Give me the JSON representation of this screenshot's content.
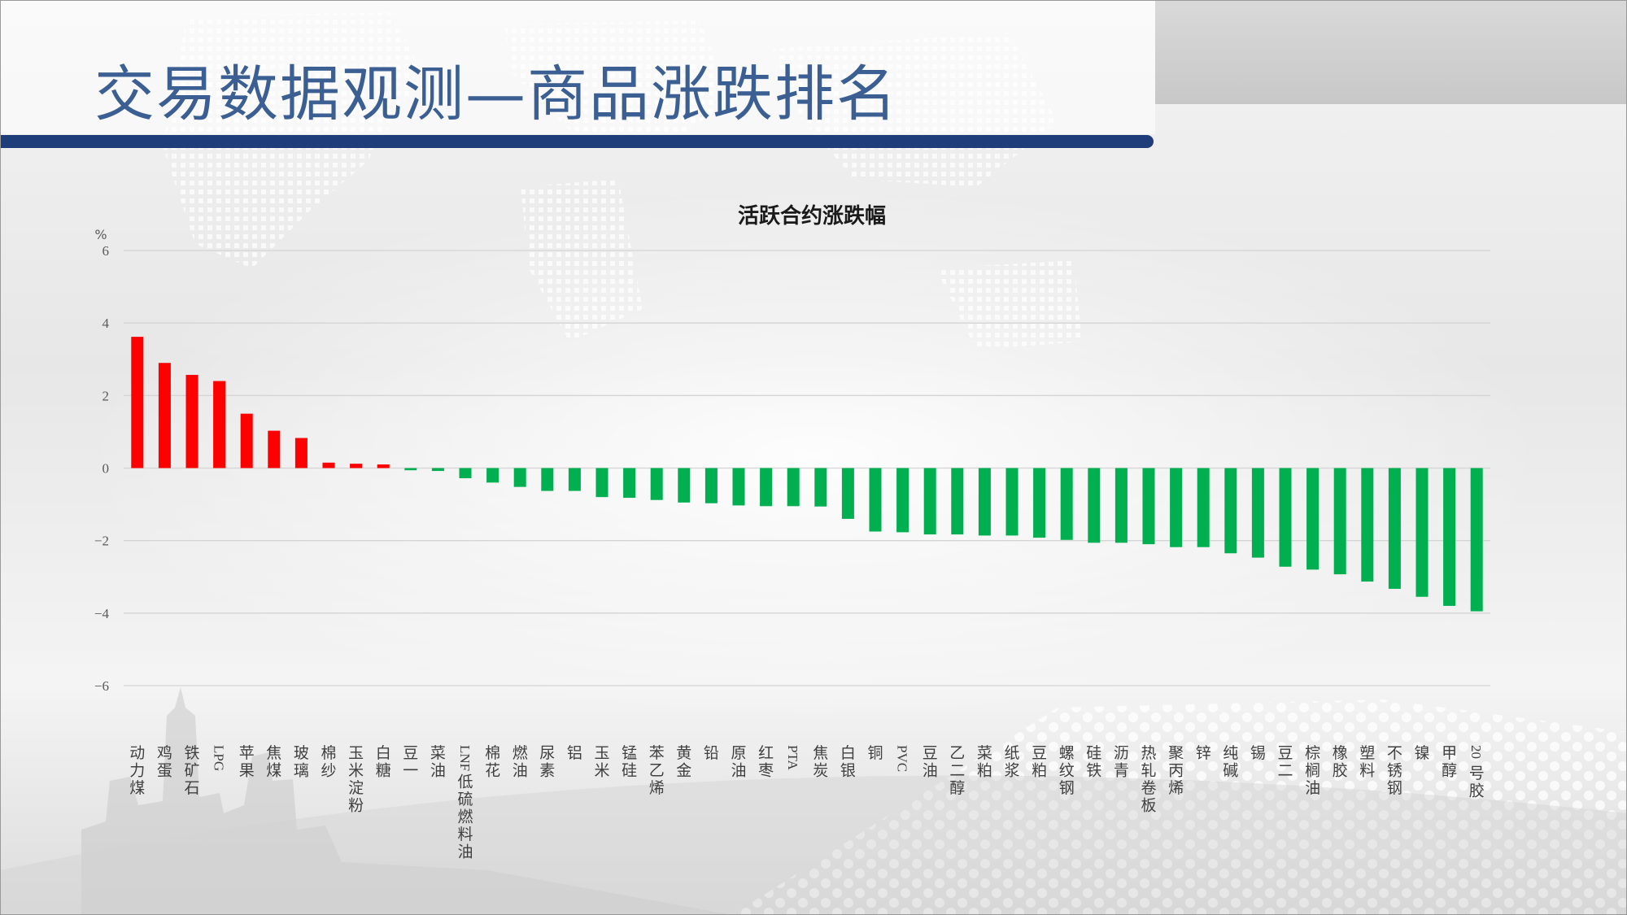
{
  "page": {
    "title": "交易数据观测—商品涨跌排名"
  },
  "colors": {
    "title_text": "#3b5f93",
    "rule_bar": "#1f3d7a",
    "positive_bar": "#ff0000",
    "negative_bar": "#00b050",
    "gridline": "#d4d4d4",
    "axis_text": "#595959"
  },
  "chart_data": {
    "type": "bar",
    "title": "活跃合约涨跌幅",
    "ylabel": "%",
    "xlabel": "",
    "ylim": [
      -6,
      6
    ],
    "yticks": [
      6,
      4,
      2,
      0,
      -2,
      -4,
      -6
    ],
    "ytick_labels": [
      "6",
      "4",
      "2",
      "0",
      "−2",
      "−4",
      "−6"
    ],
    "grid": true,
    "legend": "none",
    "categories": [
      "动力煤",
      "鸡蛋",
      "铁矿石",
      "LPG",
      "苹果",
      "焦煤",
      "玻璃",
      "棉纱",
      "玉米淀粉",
      "白糖",
      "豆一",
      "菜油",
      "LNF低硫燃料油",
      "棉花",
      "燃油",
      "尿素",
      "铝",
      "玉米",
      "锰硅",
      "苯乙烯",
      "黄金",
      "铅",
      "原油",
      "红枣",
      "PTA",
      "焦炭",
      "白银",
      "铜",
      "PVC",
      "豆油",
      "乙二醇",
      "菜粕",
      "纸浆",
      "豆粕",
      "螺纹钢",
      "硅铁",
      "沥青",
      "热轧卷板",
      "聚丙烯",
      "锌",
      "纯碱",
      "锡",
      "豆二",
      "棕榈油",
      "橡胶",
      "塑料",
      "不锈钢",
      "镍",
      "甲醇",
      "20号胶"
    ],
    "values": [
      3.62,
      2.9,
      2.57,
      2.4,
      1.5,
      1.03,
      0.83,
      0.15,
      0.12,
      0.1,
      -0.06,
      -0.08,
      -0.28,
      -0.4,
      -0.52,
      -0.63,
      -0.63,
      -0.8,
      -0.82,
      -0.88,
      -0.95,
      -0.97,
      -1.03,
      -1.05,
      -1.05,
      -1.06,
      -1.4,
      -1.75,
      -1.77,
      -1.83,
      -1.83,
      -1.86,
      -1.86,
      -1.92,
      -1.98,
      -2.06,
      -2.06,
      -2.1,
      -2.18,
      -2.18,
      -2.35,
      -2.47,
      -2.72,
      -2.8,
      -2.93,
      -3.13,
      -3.33,
      -3.55,
      -3.8,
      -3.95
    ]
  }
}
